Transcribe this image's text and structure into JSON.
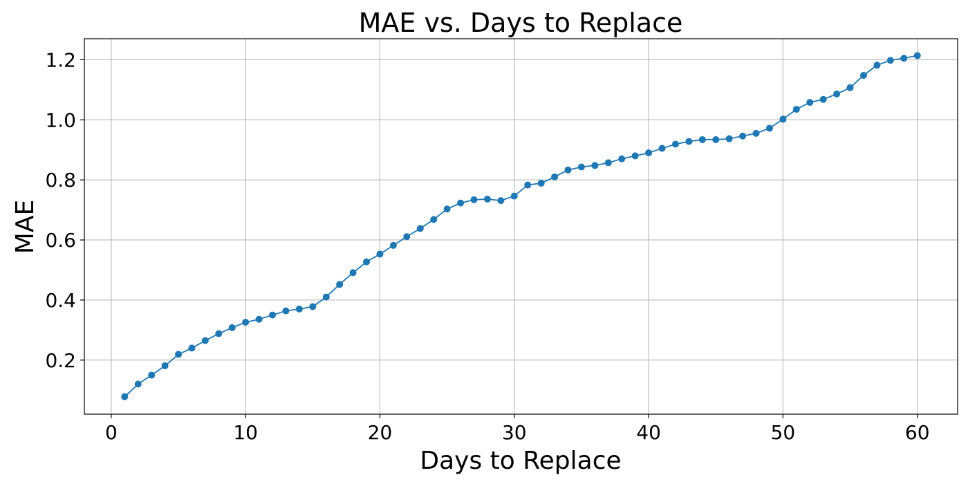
{
  "chart_data": {
    "type": "line",
    "title": "MAE vs. Days to Replace",
    "xlabel": "Days to Replace",
    "ylabel": "MAE",
    "xlim": [
      -2,
      63
    ],
    "ylim": [
      0.02,
      1.27
    ],
    "xticks": [
      0,
      10,
      20,
      30,
      40,
      50,
      60
    ],
    "yticks": [
      0.2,
      0.4,
      0.6,
      0.8,
      1.0,
      1.2
    ],
    "ytick_labels": [
      "0.2",
      "0.4",
      "0.6",
      "0.8",
      "1.0",
      "1.2"
    ],
    "grid": true,
    "color": "#1f77b4",
    "marker": "circle",
    "series": [
      {
        "x": [
          1,
          2,
          3,
          4,
          5,
          6,
          7,
          8,
          9,
          10,
          11,
          12,
          13,
          14,
          15,
          16,
          17,
          18,
          19,
          20,
          21,
          22,
          23,
          24,
          25,
          26,
          27,
          28,
          29,
          30,
          31,
          32,
          33,
          34,
          35,
          36,
          37,
          38,
          39,
          40,
          41,
          42,
          43,
          44,
          45,
          46,
          47,
          48,
          49,
          50,
          51,
          52,
          53,
          54,
          55,
          56,
          57,
          58,
          59,
          60
        ],
        "y": [
          0.078,
          0.12,
          0.15,
          0.181,
          0.219,
          0.24,
          0.265,
          0.288,
          0.308,
          0.326,
          0.336,
          0.35,
          0.364,
          0.37,
          0.378,
          0.41,
          0.452,
          0.491,
          0.527,
          0.553,
          0.582,
          0.611,
          0.638,
          0.668,
          0.703,
          0.723,
          0.734,
          0.736,
          0.731,
          0.746,
          0.783,
          0.789,
          0.81,
          0.833,
          0.843,
          0.848,
          0.857,
          0.87,
          0.88,
          0.89,
          0.905,
          0.919,
          0.928,
          0.934,
          0.934,
          0.937,
          0.946,
          0.955,
          0.972,
          1.002,
          1.035,
          1.058,
          1.068,
          1.086,
          1.107,
          1.148,
          1.182,
          1.198,
          1.205,
          1.214
        ]
      }
    ]
  }
}
